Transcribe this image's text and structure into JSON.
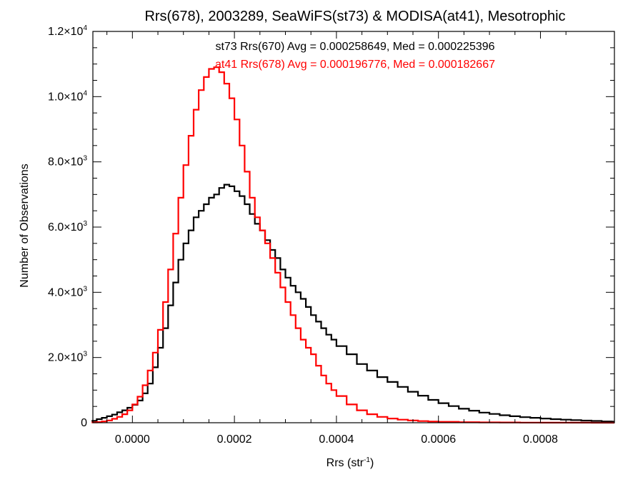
{
  "chart_data": {
    "type": "line",
    "title": "Rrs(678), 2003289, SeaWiFS(st73) & MODISA(at41), Mesotrophic",
    "xlabel_base": "Rrs (str",
    "xlabel_sup": "-1",
    "xlabel_end": ")",
    "ylabel": "Number of Observations",
    "xlim": [
      -7.75e-05,
      0.000945
    ],
    "ylim": [
      0,
      12000
    ],
    "x_ticks": [
      {
        "value": 0.0,
        "label": "0.0000"
      },
      {
        "value": 0.0002,
        "label": "0.0002"
      },
      {
        "value": 0.0004,
        "label": "0.0004"
      },
      {
        "value": 0.0006,
        "label": "0.0006"
      },
      {
        "value": 0.0008,
        "label": "0.0008"
      }
    ],
    "y_ticks": [
      {
        "value": 0,
        "mant": "0",
        "exp": ""
      },
      {
        "value": 2000,
        "mant": "2.0×10",
        "exp": "3"
      },
      {
        "value": 4000,
        "mant": "4.0×10",
        "exp": "3"
      },
      {
        "value": 6000,
        "mant": "6.0×10",
        "exp": "3"
      },
      {
        "value": 8000,
        "mant": "8.0×10",
        "exp": "3"
      },
      {
        "value": 10000,
        "mant": "1.0×10",
        "exp": "4"
      },
      {
        "value": 12000,
        "mant": "1.2×10",
        "exp": "4"
      }
    ],
    "grid": false,
    "annotations": [
      {
        "text": "st73 Rrs(670) Avg = 0.000258649, Med = 0.000225396",
        "color": "#000000"
      },
      {
        "text": "at41 Rrs(678) Avg = 0.000196776, Med = 0.000182667",
        "color": "#ff0000"
      }
    ],
    "series": [
      {
        "color": "#000000",
        "points": [
          [
            -8e-05,
            60
          ],
          [
            -7e-05,
            110
          ],
          [
            -6e-05,
            150
          ],
          [
            -5e-05,
            200
          ],
          [
            -4e-05,
            250
          ],
          [
            -3e-05,
            320
          ],
          [
            -2e-05,
            380
          ],
          [
            -1e-05,
            460
          ],
          [
            0.0,
            550
          ],
          [
            1e-05,
            680
          ],
          [
            2e-05,
            900
          ],
          [
            3e-05,
            1200
          ],
          [
            4e-05,
            1700
          ],
          [
            5e-05,
            2300
          ],
          [
            6e-05,
            2900
          ],
          [
            7e-05,
            3600
          ],
          [
            8e-05,
            4300
          ],
          [
            9e-05,
            5000
          ],
          [
            0.0001,
            5500
          ],
          [
            0.00011,
            5900
          ],
          [
            0.00012,
            6300
          ],
          [
            0.00013,
            6500
          ],
          [
            0.00014,
            6700
          ],
          [
            0.00015,
            6900
          ],
          [
            0.00016,
            7000
          ],
          [
            0.00017,
            7200
          ],
          [
            0.00018,
            7300
          ],
          [
            0.00019,
            7250
          ],
          [
            0.0002,
            7100
          ],
          [
            0.00021,
            6950
          ],
          [
            0.00022,
            6700
          ],
          [
            0.00023,
            6400
          ],
          [
            0.00024,
            6100
          ],
          [
            0.00025,
            5900
          ],
          [
            0.00026,
            5600
          ],
          [
            0.00027,
            5300
          ],
          [
            0.00028,
            5050
          ],
          [
            0.00029,
            4700
          ],
          [
            0.0003,
            4450
          ],
          [
            0.00031,
            4200
          ],
          [
            0.00032,
            4000
          ],
          [
            0.00033,
            3800
          ],
          [
            0.00034,
            3550
          ],
          [
            0.00035,
            3300
          ],
          [
            0.00036,
            3100
          ],
          [
            0.00037,
            2900
          ],
          [
            0.00038,
            2700
          ],
          [
            0.00039,
            2550
          ],
          [
            0.0004,
            2350
          ],
          [
            0.00042,
            2100
          ],
          [
            0.00044,
            1800
          ],
          [
            0.00046,
            1600
          ],
          [
            0.00048,
            1400
          ],
          [
            0.0005,
            1250
          ],
          [
            0.00052,
            1100
          ],
          [
            0.00054,
            950
          ],
          [
            0.00056,
            830
          ],
          [
            0.00058,
            700
          ],
          [
            0.0006,
            600
          ],
          [
            0.00062,
            510
          ],
          [
            0.00064,
            430
          ],
          [
            0.00066,
            370
          ],
          [
            0.00068,
            310
          ],
          [
            0.0007,
            270
          ],
          [
            0.00072,
            230
          ],
          [
            0.00074,
            200
          ],
          [
            0.00076,
            170
          ],
          [
            0.00078,
            150
          ],
          [
            0.0008,
            130
          ],
          [
            0.00082,
            110
          ],
          [
            0.00084,
            95
          ],
          [
            0.00086,
            80
          ],
          [
            0.00088,
            65
          ],
          [
            0.0009,
            55
          ],
          [
            0.00092,
            40
          ],
          [
            0.00094,
            30
          ]
        ]
      },
      {
        "color": "#ff0000",
        "points": [
          [
            -8e-05,
            10
          ],
          [
            -7e-05,
            20
          ],
          [
            -6e-05,
            40
          ],
          [
            -5e-05,
            70
          ],
          [
            -4e-05,
            120
          ],
          [
            -3e-05,
            180
          ],
          [
            -2e-05,
            260
          ],
          [
            -1e-05,
            380
          ],
          [
            0.0,
            560
          ],
          [
            1e-05,
            800
          ],
          [
            2e-05,
            1150
          ],
          [
            3e-05,
            1600
          ],
          [
            4e-05,
            2150
          ],
          [
            5e-05,
            2850
          ],
          [
            6e-05,
            3700
          ],
          [
            7e-05,
            4700
          ],
          [
            8e-05,
            5800
          ],
          [
            9e-05,
            6900
          ],
          [
            0.0001,
            7900
          ],
          [
            0.00011,
            8800
          ],
          [
            0.00012,
            9600
          ],
          [
            0.00013,
            10200
          ],
          [
            0.00014,
            10600
          ],
          [
            0.00015,
            10850
          ],
          [
            0.00016,
            10900
          ],
          [
            0.00017,
            10750
          ],
          [
            0.00018,
            10400
          ],
          [
            0.00019,
            9950
          ],
          [
            0.0002,
            9300
          ],
          [
            0.00021,
            8500
          ],
          [
            0.00022,
            7700
          ],
          [
            0.00023,
            6900
          ],
          [
            0.00024,
            6300
          ],
          [
            0.00025,
            5900
          ],
          [
            0.00026,
            5500
          ],
          [
            0.00027,
            5050
          ],
          [
            0.00028,
            4600
          ],
          [
            0.00029,
            4150
          ],
          [
            0.0003,
            3700
          ],
          [
            0.00031,
            3300
          ],
          [
            0.00032,
            2900
          ],
          [
            0.00033,
            2550
          ],
          [
            0.00034,
            2300
          ],
          [
            0.00035,
            2100
          ],
          [
            0.00036,
            1750
          ],
          [
            0.00037,
            1450
          ],
          [
            0.00038,
            1200
          ],
          [
            0.00039,
            1000
          ],
          [
            0.0004,
            820
          ],
          [
            0.00042,
            560
          ],
          [
            0.00044,
            380
          ],
          [
            0.00046,
            260
          ],
          [
            0.00048,
            180
          ],
          [
            0.0005,
            130
          ],
          [
            0.00052,
            95
          ],
          [
            0.00054,
            70
          ],
          [
            0.00056,
            50
          ],
          [
            0.00058,
            38
          ],
          [
            0.0006,
            28
          ],
          [
            0.00064,
            18
          ],
          [
            0.00068,
            12
          ],
          [
            0.00072,
            8
          ],
          [
            0.00076,
            5
          ],
          [
            0.0008,
            3
          ],
          [
            0.00085,
            2
          ],
          [
            0.0009,
            1
          ],
          [
            0.00094,
            1
          ]
        ]
      }
    ]
  }
}
